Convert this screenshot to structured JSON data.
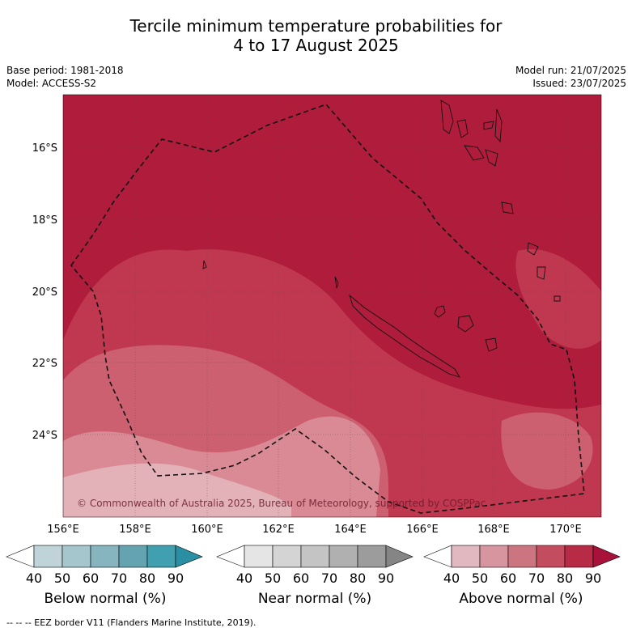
{
  "title": {
    "line1": "Tercile minimum temperature probabilities for",
    "line2": "4 to 17 August 2025"
  },
  "meta": {
    "base_period": "Base period: 1981-2018",
    "model": "Model: ACCESS-S2",
    "model_run": "Model run: 21/07/2025",
    "issued": "Issued: 23/07/2025"
  },
  "map": {
    "lat_labels": [
      "16°S",
      "18°S",
      "20°S",
      "22°S",
      "24°S"
    ],
    "lon_labels": [
      "156°E",
      "158°E",
      "160°E",
      "162°E",
      "164°E",
      "166°E",
      "168°E",
      "170°E"
    ],
    "copyright": "© Commonwealth of Australia 2025, Bureau of Meteorology, supported by COSPPac",
    "region_color": "#b01c3b"
  },
  "legends": [
    {
      "label": "Below normal (%)",
      "ticks": [
        "40",
        "50",
        "60",
        "70",
        "80",
        "90"
      ],
      "colors": [
        "#ffffff",
        "#bfd3d9",
        "#a4c6cc",
        "#86b5bf",
        "#64a3b0",
        "#41a0af",
        "#2b8fa3"
      ]
    },
    {
      "label": "Near normal (%)",
      "ticks": [
        "40",
        "50",
        "60",
        "70",
        "80",
        "90"
      ],
      "colors": [
        "#ffffff",
        "#e5e5e5",
        "#d4d4d4",
        "#c4c4c4",
        "#b0b0b0",
        "#9c9c9c",
        "#858585"
      ]
    },
    {
      "label": "Above normal (%)",
      "ticks": [
        "40",
        "50",
        "60",
        "70",
        "80",
        "90"
      ],
      "colors": [
        "#ffffff",
        "#e2b8c0",
        "#d6959f",
        "#cc7580",
        "#c34d5f",
        "#b72b46",
        "#a8123a"
      ]
    }
  ],
  "footnote": "--  --  -- EEZ border V11 (Flanders Marine Institute, 2019)."
}
